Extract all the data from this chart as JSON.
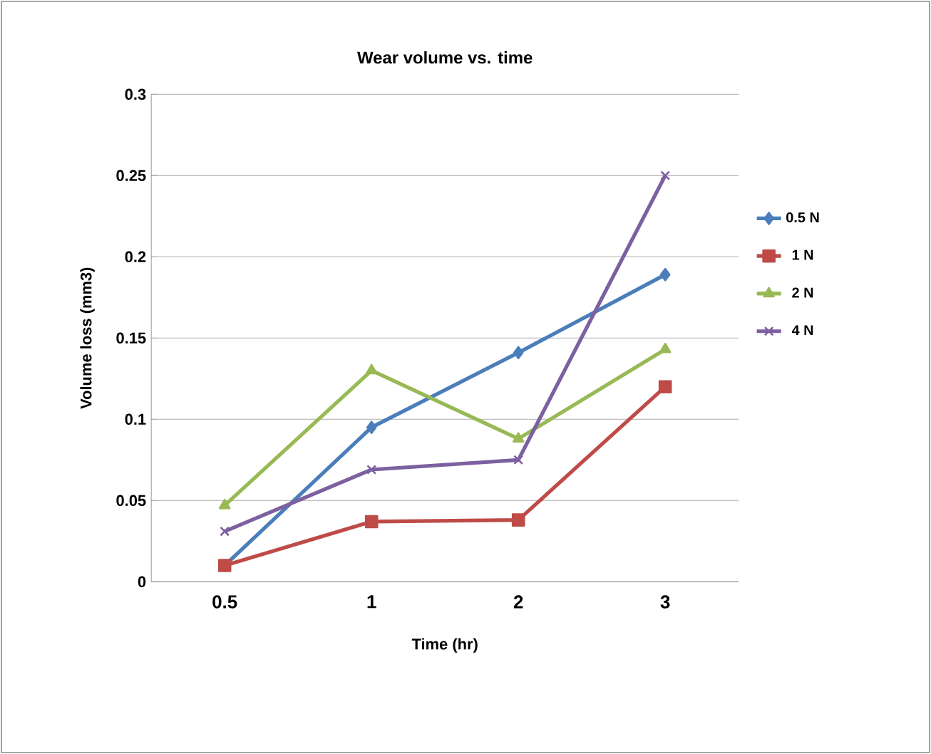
{
  "chart_data": {
    "type": "line",
    "title": "Wear volume vs. time",
    "xlabel": "Time (hr)",
    "ylabel": "Volume loss (mm3)",
    "categories": [
      "0.5",
      "1",
      "2",
      "3"
    ],
    "series": [
      {
        "name": "0.5 N",
        "color": "#4a7ebb",
        "marker": "diamond",
        "values": [
          0.01,
          0.095,
          0.141,
          0.189
        ]
      },
      {
        "name": "1 N",
        "color": "#be4b48",
        "marker": "square",
        "values": [
          0.01,
          0.037,
          0.038,
          0.12
        ]
      },
      {
        "name": "2 N",
        "color": "#98b954",
        "marker": "triangle",
        "values": [
          0.047,
          0.13,
          0.088,
          0.143
        ]
      },
      {
        "name": "4 N",
        "color": "#7d60a0",
        "marker": "cross",
        "values": [
          0.031,
          0.069,
          0.075,
          0.25
        ]
      }
    ],
    "ylim": [
      0,
      0.3
    ],
    "yticks": [
      0,
      0.05,
      0.1,
      0.15,
      0.2,
      0.25,
      0.3
    ],
    "grid": "y",
    "legend": "right",
    "line_style": "solid"
  }
}
